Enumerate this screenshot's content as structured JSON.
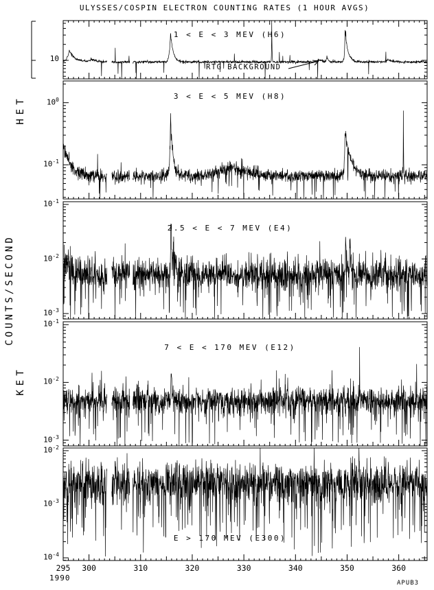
{
  "title": "ULYSSES/COSPIN ELECTRON COUNTING RATES (1 HOUR AVGS)",
  "side_labels": {
    "het": "HET",
    "counts_per_second": "COUNTS/SECOND",
    "ket": "KET"
  },
  "footer": {
    "year": "1990",
    "plot_code": "APUB3"
  },
  "axis": {
    "x_min": 295,
    "x_max": 365.5,
    "x_unit": "day of year 1990",
    "x_major_ticks": [
      295,
      300,
      310,
      320,
      330,
      340,
      350,
      360
    ],
    "x_minor_step": 1,
    "data_gaps": [
      [
        303.5,
        304.4
      ],
      [
        307.9,
        308.5
      ]
    ]
  },
  "chart_data": [
    {
      "type": "line",
      "instrument": "HET",
      "label": "1 < E < 3 MEV (H6)",
      "label_position": "top",
      "ylog_range": [
        0.65,
        1.75
      ],
      "y_ticks": [
        {
          "log": 1,
          "base": "10",
          "sup": ""
        }
      ],
      "baseline_log": 0.97,
      "noise_log": 0.013,
      "down_spike_prob": 0.012,
      "down_spike_depth": [
        0.1,
        0.35
      ],
      "up_spike_prob": 0.004,
      "up_spike_amp": [
        0.1,
        0.25
      ],
      "spikes": [
        {
          "x0": 296.2,
          "amp": 0.22,
          "rise": 0.4,
          "decay": 1.0
        },
        {
          "x0": 300.5,
          "amp": 0.05,
          "rise": 0.6,
          "decay": 1.0
        },
        {
          "x0": 315.8,
          "amp": 0.55,
          "rise": 0.22,
          "decay": 0.5
        },
        {
          "x0": 335.4,
          "amp": 0.78,
          "rise": 0.035,
          "decay": 0.05
        },
        {
          "x0": 344.6,
          "amp": 0.05,
          "rise": 0.4,
          "decay": 0.6
        },
        {
          "x0": 346.1,
          "amp": 0.1,
          "rise": 0.12,
          "decay": 0.25
        },
        {
          "x0": 349.6,
          "amp": 0.6,
          "rise": 0.1,
          "decay": 0.55
        },
        {
          "x0": 357.9,
          "amp": 0.05,
          "rise": 0.4,
          "decay": 0.7
        }
      ],
      "annotation": {
        "text": "RTG BACKGROUND",
        "points_to_x": 344.6
      }
    },
    {
      "type": "line",
      "instrument": "HET",
      "label": "3 < E < 5 MEV (H8)",
      "label_position": "top",
      "ylog_range": [
        -1.55,
        0.35
      ],
      "y_ticks": [
        {
          "log": 0,
          "base": "10",
          "sup": "0"
        },
        {
          "log": -1,
          "base": "10",
          "sup": "-1"
        }
      ],
      "baseline_log": -1.18,
      "noise_log": 0.05,
      "down_spike_prob": 0.03,
      "down_spike_depth": [
        0.15,
        0.5
      ],
      "up_spike_prob": 0.006,
      "up_spike_amp": [
        0.1,
        0.3
      ],
      "spikes": [
        {
          "x0": 295.0,
          "amp": 0.55,
          "rise": 0.01,
          "decay": 1.3
        },
        {
          "x0": 315.8,
          "amp": 0.9,
          "rise": 0.18,
          "decay": 0.5
        },
        {
          "x0": 327.5,
          "amp": 0.17,
          "rise": 2.2,
          "decay": 2.8
        },
        {
          "x0": 349.6,
          "amp": 0.72,
          "rise": 0.14,
          "decay": 1.1
        },
        {
          "x0": 360.9,
          "amp": 1.12,
          "rise": 0.025,
          "decay": 0.04
        }
      ]
    },
    {
      "type": "line",
      "instrument": "KET",
      "label": "2.5 < E < 7 MEV (E4)",
      "label_position": "top",
      "ylog_range": [
        -3.1,
        -0.95
      ],
      "y_ticks": [
        {
          "log": -1,
          "base": "10",
          "sup": "-1"
        },
        {
          "log": -2,
          "base": "10",
          "sup": "-2"
        },
        {
          "log": -3,
          "base": "10",
          "sup": "-3"
        }
      ],
      "baseline_log": -2.28,
      "noise_log": 0.14,
      "down_spike_prob": 0.07,
      "down_spike_depth": [
        0.25,
        0.85
      ],
      "up_spike_prob": 0.012,
      "up_spike_amp": [
        0.2,
        0.5
      ],
      "spikes": [
        {
          "x0": 295.2,
          "amp": 0.3,
          "rise": 0.01,
          "decay": 1.2
        },
        {
          "x0": 315.85,
          "amp": 0.95,
          "rise": 0.07,
          "decay": 0.3
        },
        {
          "x0": 316.4,
          "amp": 0.45,
          "rise": 0.05,
          "decay": 0.3
        },
        {
          "x0": 349.7,
          "amp": 0.6,
          "rise": 0.05,
          "decay": 0.25
        },
        {
          "x0": 350.5,
          "amp": 0.5,
          "rise": 0.04,
          "decay": 0.3
        }
      ]
    },
    {
      "type": "line",
      "instrument": "KET",
      "label": "7 < E < 170 MEV (E12)",
      "label_position": "top",
      "ylog_range": [
        -3.1,
        -0.95
      ],
      "y_ticks": [
        {
          "log": -1,
          "base": "10",
          "sup": "-1"
        },
        {
          "log": -2,
          "base": "10",
          "sup": "-2"
        },
        {
          "log": -3,
          "base": "10",
          "sup": "-3"
        }
      ],
      "baseline_log": -2.32,
      "noise_log": 0.12,
      "down_spike_prob": 0.06,
      "down_spike_depth": [
        0.2,
        0.75
      ],
      "up_spike_prob": 0.012,
      "up_spike_amp": [
        0.2,
        0.5
      ],
      "spikes": [
        {
          "x0": 315.9,
          "amp": 0.5,
          "rise": 0.05,
          "decay": 0.2
        },
        {
          "x0": 338.0,
          "amp": 0.35,
          "rise": 0.02,
          "decay": 0.04
        },
        {
          "x0": 352.4,
          "amp": 0.55,
          "rise": 0.03,
          "decay": 0.1
        },
        {
          "x0": 361.0,
          "amp": 0.3,
          "rise": 0.02,
          "decay": 0.05
        }
      ]
    },
    {
      "type": "line",
      "instrument": "KET",
      "label": "E > 170 MEV (E300)",
      "label_position": "bottom",
      "ylog_range": [
        -4.05,
        -1.95
      ],
      "y_ticks": [
        {
          "log": -2,
          "base": "10",
          "sup": "-2"
        },
        {
          "log": -3,
          "base": "10",
          "sup": "-3"
        },
        {
          "log": -4,
          "base": "10",
          "sup": "-4"
        }
      ],
      "baseline_log": -2.6,
      "noise_log": 0.18,
      "down_spike_prob": 0.09,
      "down_spike_depth": [
        0.3,
        1.1
      ],
      "up_spike_prob": 0.01,
      "up_spike_amp": [
        0.25,
        0.55
      ],
      "spikes": [
        {
          "x0": 352.3,
          "amp": 0.6,
          "rise": 0.025,
          "decay": 0.07
        }
      ]
    }
  ]
}
